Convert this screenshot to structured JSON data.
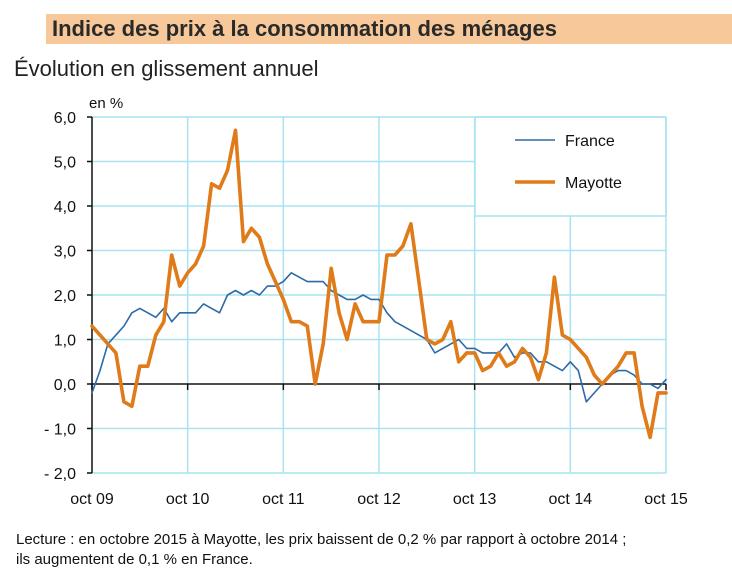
{
  "header": {
    "title": "Indice des prix à la consommation des ménages",
    "subtitle": "Évolution en glissement annuel",
    "band_color": "#f7c99a"
  },
  "caption": {
    "line1": "Lecture : en octobre 2015 à Mayotte, les prix baissent de 0,2 % par rapport à octobre 2014 ;",
    "line2": "ils augmentent de 0,1 %  en France."
  },
  "chart_data": {
    "type": "line",
    "title": "Évolution en glissement annuel",
    "ylabel": "en %",
    "xlabel": "",
    "ylim": [
      -2.0,
      6.0
    ],
    "yticks": [
      6.0,
      5.0,
      4.0,
      3.0,
      2.0,
      1.0,
      0.0,
      -1.0,
      -2.0
    ],
    "ytick_labels": [
      "6,0",
      "5,0",
      "4,0",
      "3,0",
      "2,0",
      "1,0",
      "0,0",
      "- 1,0",
      "- 2,0"
    ],
    "xtick_labels": [
      "oct 09",
      "oct 10",
      "oct 11",
      "oct 12",
      "oct 13",
      "oct 14",
      "oct 15"
    ],
    "x_start": "2009-10",
    "x_end": "2015-10",
    "frequency": "monthly",
    "grid": true,
    "legend_position": "top-right",
    "series": [
      {
        "name": "France",
        "color": "#2e6aa6",
        "values": [
          -0.2,
          0.3,
          0.9,
          1.1,
          1.3,
          1.6,
          1.7,
          1.6,
          1.5,
          1.7,
          1.4,
          1.6,
          1.6,
          1.6,
          1.8,
          1.7,
          1.6,
          2.0,
          2.1,
          2.0,
          2.1,
          2.0,
          2.2,
          2.2,
          2.3,
          2.5,
          2.4,
          2.3,
          2.3,
          2.3,
          2.1,
          2.0,
          1.9,
          1.9,
          2.0,
          1.9,
          1.9,
          1.6,
          1.4,
          1.3,
          1.2,
          1.1,
          1.0,
          0.7,
          0.8,
          0.9,
          1.0,
          0.8,
          0.8,
          0.7,
          0.7,
          0.7,
          0.9,
          0.6,
          0.7,
          0.7,
          0.5,
          0.5,
          0.4,
          0.3,
          0.5,
          0.3,
          -0.4,
          -0.2,
          0.0,
          0.2,
          0.3,
          0.3,
          0.2,
          0.0,
          0.0,
          -0.1,
          0.1
        ]
      },
      {
        "name": "Mayotte",
        "color": "#e07b1a",
        "values": [
          1.3,
          1.1,
          0.9,
          0.7,
          -0.4,
          -0.5,
          0.4,
          0.4,
          1.1,
          1.4,
          2.9,
          2.2,
          2.5,
          2.7,
          3.1,
          4.5,
          4.4,
          4.8,
          5.7,
          3.2,
          3.5,
          3.3,
          2.7,
          2.3,
          1.9,
          1.4,
          1.4,
          1.3,
          0.0,
          0.9,
          2.6,
          1.6,
          1.0,
          1.8,
          1.4,
          1.4,
          1.4,
          2.9,
          2.9,
          3.1,
          3.6,
          2.3,
          1.0,
          0.9,
          1.0,
          1.4,
          0.5,
          0.7,
          0.7,
          0.3,
          0.4,
          0.7,
          0.4,
          0.5,
          0.8,
          0.6,
          0.1,
          0.7,
          2.4,
          1.1,
          1.0,
          0.8,
          0.6,
          0.2,
          0.0,
          0.2,
          0.4,
          0.7,
          0.7,
          -0.5,
          -1.2,
          -0.2,
          -0.2
        ]
      }
    ]
  }
}
